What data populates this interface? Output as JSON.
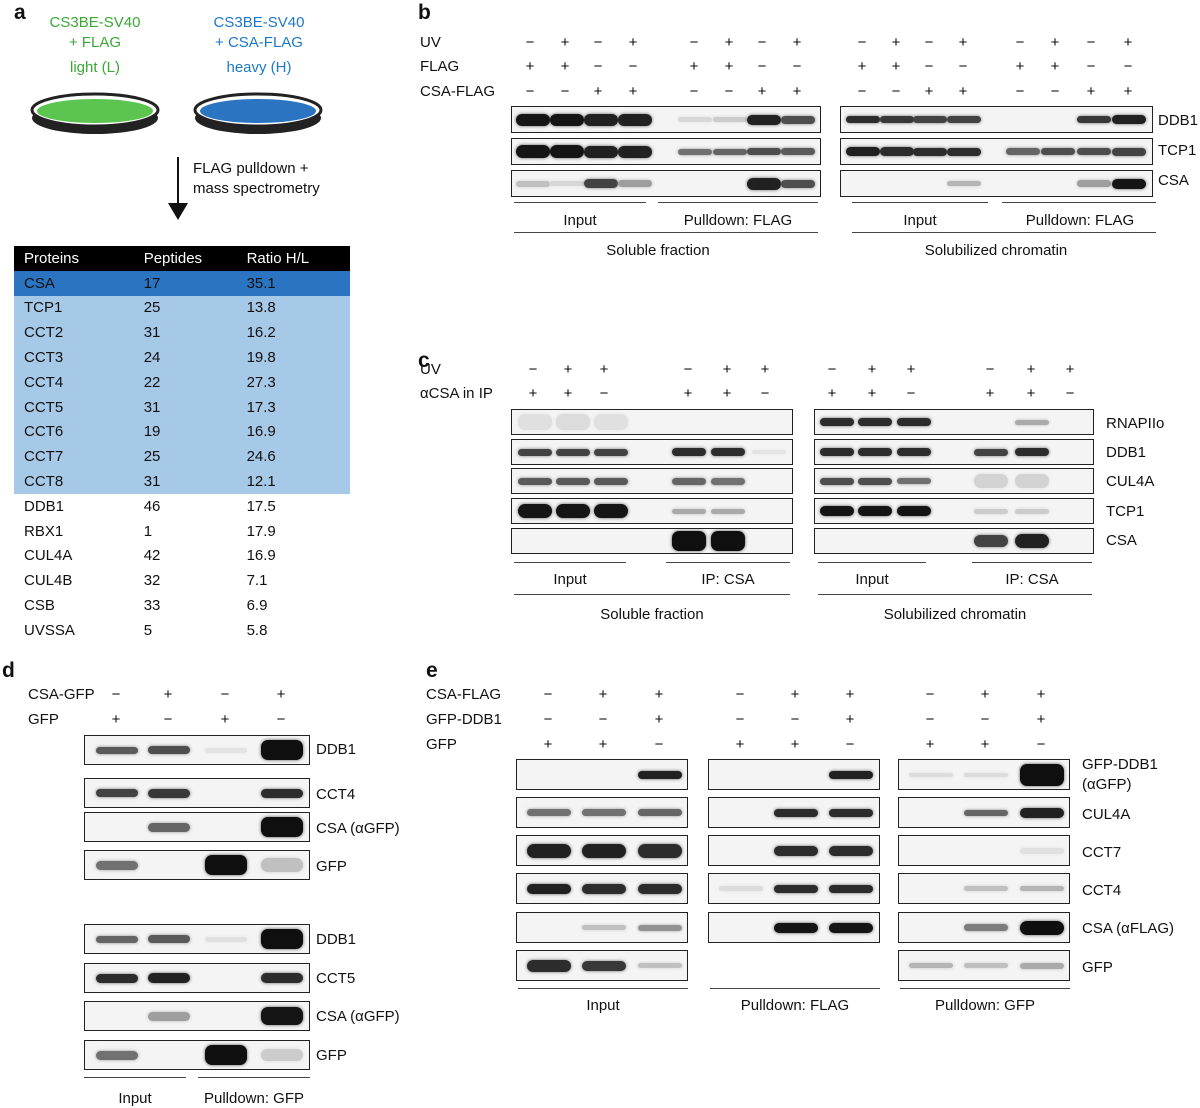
{
  "panel_a": {
    "label": "a",
    "light_lines": [
      "CS3BE-SV40",
      "+ FLAG",
      "light (L)"
    ],
    "heavy_lines": [
      "CS3BE-SV40",
      "+ CSA-FLAG",
      "heavy (H)"
    ],
    "light_color": "#3aa835",
    "heavy_color": "#1e78c8",
    "arrow_text": [
      "FLAG pulldown +",
      "mass spectrometry"
    ],
    "table": {
      "headers": [
        "Proteins",
        "Peptides",
        "Ratio H/L"
      ],
      "rows": [
        {
          "protein": "CSA",
          "peptides": "17",
          "ratio": "35.1",
          "hl": "dark"
        },
        {
          "protein": "TCP1",
          "peptides": "25",
          "ratio": "13.8",
          "hl": "light"
        },
        {
          "protein": "CCT2",
          "peptides": "31",
          "ratio": "16.2",
          "hl": "light"
        },
        {
          "protein": "CCT3",
          "peptides": "24",
          "ratio": "19.8",
          "hl": "light"
        },
        {
          "protein": "CCT4",
          "peptides": "22",
          "ratio": "27.3",
          "hl": "light"
        },
        {
          "protein": "CCT5",
          "peptides": "31",
          "ratio": "17.3",
          "hl": "light"
        },
        {
          "protein": "CCT6",
          "peptides": "19",
          "ratio": "16.9",
          "hl": "light"
        },
        {
          "protein": "CCT7",
          "peptides": "25",
          "ratio": "24.6",
          "hl": "light"
        },
        {
          "protein": "CCT8",
          "peptides": "31",
          "ratio": "12.1",
          "hl": "light"
        },
        {
          "protein": "DDB1",
          "peptides": "46",
          "ratio": "17.5",
          "hl": "none"
        },
        {
          "protein": "RBX1",
          "peptides": "1",
          "ratio": "17.9",
          "hl": "none"
        },
        {
          "protein": "CUL4A",
          "peptides": "42",
          "ratio": "16.9",
          "hl": "none"
        },
        {
          "protein": "CUL4B",
          "peptides": "32",
          "ratio": "7.1",
          "hl": "none"
        },
        {
          "protein": "CSB",
          "peptides": "33",
          "ratio": "6.9",
          "hl": "none"
        },
        {
          "protein": "UVSSA",
          "peptides": "5",
          "ratio": "5.8",
          "hl": "none"
        }
      ]
    }
  },
  "panel_b": {
    "label": "b",
    "conditions": [
      {
        "name": "UV",
        "values": [
          "−",
          "+",
          "−",
          "+",
          "−",
          "+",
          "−",
          "+",
          "−",
          "+",
          "−",
          "+",
          "−",
          "+",
          "−",
          "+"
        ]
      },
      {
        "name": "FLAG",
        "values": [
          "+",
          "+",
          "−",
          "−",
          "+",
          "+",
          "−",
          "−",
          "+",
          "+",
          "−",
          "−",
          "+",
          "+",
          "−",
          "−"
        ]
      },
      {
        "name": "CSA-FLAG",
        "values": [
          "−",
          "−",
          "+",
          "+",
          "−",
          "−",
          "+",
          "+",
          "−",
          "−",
          "+",
          "+",
          "−",
          "−",
          "+",
          "+"
        ]
      }
    ],
    "blot_labels": [
      "DDB1",
      "TCP1",
      "CSA"
    ],
    "group_labels": [
      "Input",
      "Pulldown: FLAG",
      "Input",
      "Pulldown: FLAG"
    ],
    "fraction_labels": [
      "Soluble fraction",
      "Solubilized chromatin"
    ]
  },
  "panel_c": {
    "label": "c",
    "conditions": [
      {
        "name": "UV",
        "values": [
          "−",
          "+",
          "+",
          "−",
          "+",
          "+",
          "−",
          "+",
          "+",
          "−",
          "+",
          "+"
        ]
      },
      {
        "name": "αCSA in IP",
        "values": [
          "+",
          "+",
          "−",
          "+",
          "+",
          "−",
          "+",
          "+",
          "−",
          "+",
          "+",
          "−"
        ]
      }
    ],
    "blot_labels": [
      "RNAPIIo",
      "DDB1",
      "CUL4A",
      "TCP1",
      "CSA"
    ],
    "group_labels": [
      "Input",
      "IP: CSA",
      "Input",
      "IP: CSA"
    ],
    "fraction_labels": [
      "Soluble fraction",
      "Solubilized chromatin"
    ]
  },
  "panel_d": {
    "label": "d",
    "conditions": [
      {
        "name": "CSA-GFP",
        "values": [
          "−",
          "+",
          "−",
          "+"
        ]
      },
      {
        "name": "GFP",
        "values": [
          "+",
          "−",
          "+",
          "−"
        ]
      }
    ],
    "blot_labels": [
      "DDB1",
      "CCT4",
      "CSA (αGFP)",
      "GFP",
      "DDB1",
      "CCT5",
      "CSA (αGFP)",
      "GFP"
    ],
    "group_labels": [
      "Input",
      "Pulldown: GFP"
    ]
  },
  "panel_e": {
    "label": "e",
    "conditions": [
      {
        "name": "CSA-FLAG",
        "values": [
          "−",
          "+",
          "+",
          "−",
          "+",
          "+",
          "−",
          "+",
          "+"
        ]
      },
      {
        "name": "GFP-DDB1",
        "values": [
          "−",
          "−",
          "+",
          "−",
          "−",
          "+",
          "−",
          "−",
          "+"
        ]
      },
      {
        "name": "GFP",
        "values": [
          "+",
          "+",
          "−",
          "+",
          "+",
          "−",
          "+",
          "+",
          "−"
        ]
      }
    ],
    "blot_labels": [
      "GFP-DDB1",
      "(αGFP)",
      "CUL4A",
      "CCT7",
      "CCT4",
      "CSA (αFLAG)",
      "GFP"
    ],
    "group_labels": [
      "Input",
      "Pulldown: FLAG",
      "Pulldown: GFP"
    ]
  }
}
